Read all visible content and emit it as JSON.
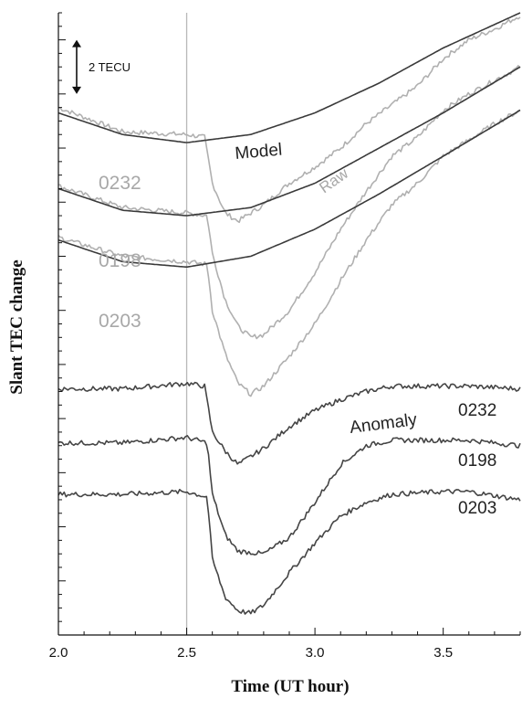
{
  "chart_data": {
    "type": "line",
    "xlabel": "Time (UT hour)",
    "ylabel": "Slant TEC change",
    "xlim": [
      2.0,
      3.8
    ],
    "x_ticks": [
      2.0,
      2.5,
      3.0,
      3.5
    ],
    "x_tick_labels": [
      "2.0",
      "2.5",
      "3.0",
      "3.5"
    ],
    "ylim": [
      0,
      23
    ],
    "y_units": "TECU",
    "y_minor_tick_step": 0.5,
    "y_major_tick_step": 2,
    "grid": false,
    "vertical_reference_line_x": 2.5,
    "scale_bar": {
      "label": "2 TECU",
      "value": 2
    },
    "labels": {
      "model": "Model",
      "raw": "Raw",
      "anomaly": "Anomaly"
    },
    "raw_labels": [
      "0232",
      "0198",
      "0203"
    ],
    "anomaly_labels": [
      "0232",
      "0198",
      "0203"
    ],
    "colors": {
      "model": "#3a3a3a",
      "raw": "#b0b0b0",
      "anomaly": "#454545",
      "reference_line": "#b8b8b8"
    },
    "series": [
      {
        "name": "0232",
        "group": "Model",
        "points": [
          [
            2.0,
            19.3
          ],
          [
            2.25,
            18.5
          ],
          [
            2.5,
            18.2
          ],
          [
            2.75,
            18.5
          ],
          [
            3.0,
            19.3
          ],
          [
            3.25,
            20.4
          ],
          [
            3.5,
            21.7
          ],
          [
            3.8,
            23.0
          ]
        ]
      },
      {
        "name": "0198",
        "group": "Model",
        "points": [
          [
            2.0,
            16.5
          ],
          [
            2.25,
            15.7
          ],
          [
            2.5,
            15.5
          ],
          [
            2.75,
            15.8
          ],
          [
            3.0,
            16.7
          ],
          [
            3.25,
            18.0
          ],
          [
            3.5,
            19.3
          ],
          [
            3.8,
            21.0
          ]
        ]
      },
      {
        "name": "0203",
        "group": "Model",
        "points": [
          [
            2.0,
            14.6
          ],
          [
            2.25,
            13.8
          ],
          [
            2.5,
            13.6
          ],
          [
            2.75,
            14.0
          ],
          [
            3.0,
            15.0
          ],
          [
            3.25,
            16.3
          ],
          [
            3.5,
            17.7
          ],
          [
            3.8,
            19.4
          ]
        ]
      },
      {
        "name": "0232",
        "group": "Raw",
        "points": [
          [
            2.0,
            19.5
          ],
          [
            2.25,
            18.6
          ],
          [
            2.5,
            18.5
          ],
          [
            2.57,
            18.4
          ],
          [
            2.6,
            16.7
          ],
          [
            2.65,
            15.6
          ],
          [
            2.7,
            15.3
          ],
          [
            2.8,
            15.9
          ],
          [
            2.9,
            16.7
          ],
          [
            3.0,
            17.3
          ],
          [
            3.1,
            18.0
          ],
          [
            3.2,
            18.9
          ],
          [
            3.3,
            19.6
          ],
          [
            3.4,
            20.3
          ],
          [
            3.5,
            21.3
          ],
          [
            3.6,
            22.0
          ],
          [
            3.7,
            22.4
          ],
          [
            3.8,
            22.9
          ]
        ]
      },
      {
        "name": "0198",
        "group": "Raw",
        "points": [
          [
            2.0,
            16.6
          ],
          [
            2.25,
            15.8
          ],
          [
            2.5,
            15.6
          ],
          [
            2.58,
            15.5
          ],
          [
            2.6,
            14.1
          ],
          [
            2.65,
            12.4
          ],
          [
            2.7,
            11.4
          ],
          [
            2.75,
            11.0
          ],
          [
            2.8,
            11.1
          ],
          [
            2.9,
            12.0
          ],
          [
            3.0,
            13.4
          ],
          [
            3.1,
            15.0
          ],
          [
            3.2,
            16.4
          ],
          [
            3.3,
            17.7
          ],
          [
            3.4,
            18.4
          ],
          [
            3.5,
            19.4
          ],
          [
            3.6,
            20.0
          ],
          [
            3.7,
            20.5
          ],
          [
            3.8,
            21.0
          ]
        ]
      },
      {
        "name": "0203",
        "group": "Raw",
        "points": [
          [
            2.0,
            14.7
          ],
          [
            2.25,
            14.0
          ],
          [
            2.5,
            13.8
          ],
          [
            2.58,
            13.7
          ],
          [
            2.6,
            12.0
          ],
          [
            2.65,
            10.4
          ],
          [
            2.7,
            9.3
          ],
          [
            2.75,
            8.9
          ],
          [
            2.8,
            9.2
          ],
          [
            2.9,
            10.3
          ],
          [
            3.0,
            11.5
          ],
          [
            3.1,
            13.1
          ],
          [
            3.2,
            14.6
          ],
          [
            3.3,
            15.9
          ],
          [
            3.4,
            16.7
          ],
          [
            3.5,
            17.7
          ],
          [
            3.6,
            18.3
          ],
          [
            3.7,
            18.9
          ],
          [
            3.8,
            19.4
          ]
        ]
      },
      {
        "name": "0232",
        "group": "Anomaly",
        "points": [
          [
            2.0,
            9.1
          ],
          [
            2.25,
            9.1
          ],
          [
            2.5,
            9.3
          ],
          [
            2.57,
            9.2
          ],
          [
            2.6,
            7.5
          ],
          [
            2.65,
            6.8
          ],
          [
            2.7,
            6.3
          ],
          [
            2.8,
            6.9
          ],
          [
            2.9,
            7.7
          ],
          [
            3.0,
            8.3
          ],
          [
            3.1,
            8.7
          ],
          [
            3.2,
            9.0
          ],
          [
            3.3,
            9.2
          ],
          [
            3.5,
            9.2
          ],
          [
            3.6,
            9.2
          ],
          [
            3.8,
            9.1
          ]
        ]
      },
      {
        "name": "0198",
        "group": "Anomaly",
        "points": [
          [
            2.0,
            7.1
          ],
          [
            2.25,
            7.1
          ],
          [
            2.5,
            7.3
          ],
          [
            2.58,
            7.1
          ],
          [
            2.6,
            5.2
          ],
          [
            2.65,
            3.7
          ],
          [
            2.7,
            3.1
          ],
          [
            2.8,
            3.0
          ],
          [
            2.9,
            3.6
          ],
          [
            3.0,
            4.9
          ],
          [
            3.1,
            6.3
          ],
          [
            3.2,
            7.0
          ],
          [
            3.3,
            7.2
          ],
          [
            3.5,
            7.2
          ],
          [
            3.6,
            7.2
          ],
          [
            3.8,
            7.0
          ]
        ]
      },
      {
        "name": "0203",
        "group": "Anomaly",
        "points": [
          [
            2.0,
            5.2
          ],
          [
            2.25,
            5.2
          ],
          [
            2.5,
            5.3
          ],
          [
            2.58,
            5.1
          ],
          [
            2.6,
            2.8
          ],
          [
            2.65,
            1.4
          ],
          [
            2.7,
            0.9
          ],
          [
            2.75,
            0.8
          ],
          [
            2.8,
            1.1
          ],
          [
            2.9,
            2.3
          ],
          [
            3.0,
            3.4
          ],
          [
            3.1,
            4.4
          ],
          [
            3.2,
            4.9
          ],
          [
            3.3,
            5.2
          ],
          [
            3.5,
            5.3
          ],
          [
            3.6,
            5.3
          ],
          [
            3.8,
            5.0
          ]
        ]
      }
    ]
  }
}
